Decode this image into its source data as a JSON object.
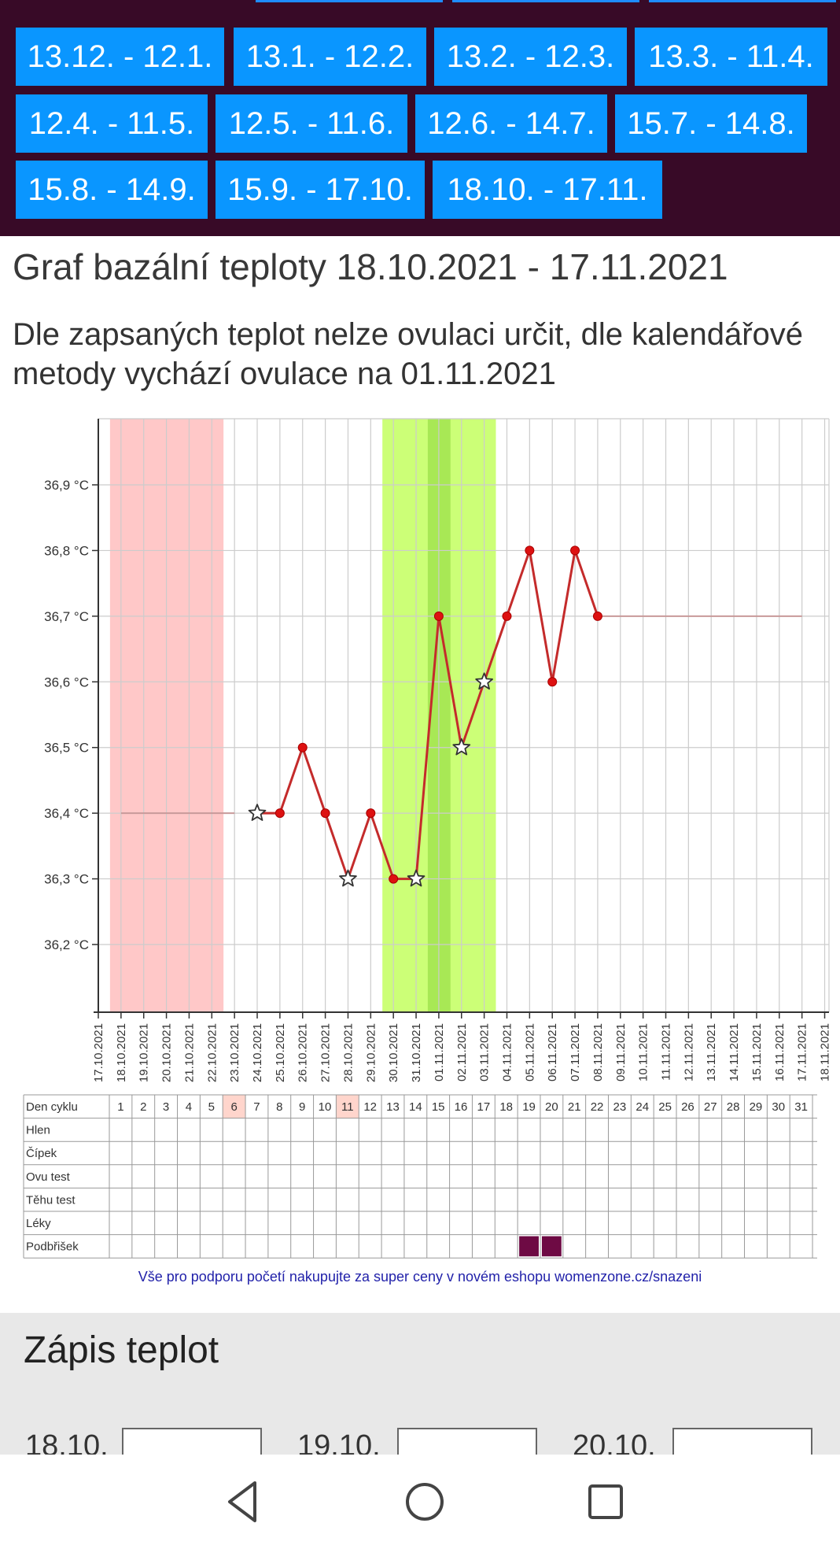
{
  "cycles": [
    "13.12. - 12.1.",
    "13.1. - 12.2.",
    "13.2. - 12.3.",
    "13.3. - 11.4.",
    "12.4. - 11.5.",
    "12.5. - 11.6.",
    "12.6. - 14.7.",
    "15.7. - 14.8.",
    "15.8. - 14.9.",
    "15.9. - 17.10.",
    "18.10. - 17.11."
  ],
  "title": "Graf bazální teploty 18.10.2021 - 17.11.2021",
  "result_text": "Dle zapsaných teplot nelze ovulaci určit, dle kalendářové metody vychází ovulace na 01.11.2021",
  "chart_data": {
    "type": "line",
    "y_unit": "°C",
    "y_tick_labels": [
      "36,9 °C",
      "36,8 °C",
      "36,7 °C",
      "36,6 °C",
      "36,5 °C",
      "36,4 °C",
      "36,3 °C",
      "36,2 °C"
    ],
    "y_ticks": [
      36.9,
      36.8,
      36.7,
      36.6,
      36.5,
      36.4,
      36.3,
      36.2
    ],
    "ylim": [
      36.1,
      37.0
    ],
    "x_labels": [
      "17.10.2021",
      "18.10.2021",
      "19.10.2021",
      "20.10.2021",
      "21.10.2021",
      "22.10.2021",
      "23.10.2021",
      "24.10.2021",
      "25.10.2021",
      "26.10.2021",
      "27.10.2021",
      "28.10.2021",
      "29.10.2021",
      "30.10.2021",
      "31.10.2021",
      "01.11.2021",
      "02.11.2021",
      "03.11.2021",
      "04.11.2021",
      "05.11.2021",
      "06.11.2021",
      "07.11.2021",
      "08.11.2021",
      "09.11.2021",
      "10.11.2021",
      "11.11.2021",
      "12.11.2021",
      "13.11.2021",
      "14.11.2021",
      "15.11.2021",
      "16.11.2021",
      "17.11.2021",
      "18.11.2021"
    ],
    "measured": [
      {
        "date": "24.10.2021",
        "temp": 36.4,
        "marker": "star"
      },
      {
        "date": "25.10.2021",
        "temp": 36.4,
        "marker": "dot"
      },
      {
        "date": "26.10.2021",
        "temp": 36.5,
        "marker": "dot"
      },
      {
        "date": "27.10.2021",
        "temp": 36.4,
        "marker": "dot"
      },
      {
        "date": "28.10.2021",
        "temp": 36.3,
        "marker": "star"
      },
      {
        "date": "29.10.2021",
        "temp": 36.4,
        "marker": "dot"
      },
      {
        "date": "30.10.2021",
        "temp": 36.3,
        "marker": "dot"
      },
      {
        "date": "31.10.2021",
        "temp": 36.3,
        "marker": "star"
      },
      {
        "date": "01.11.2021",
        "temp": 36.7,
        "marker": "dot"
      },
      {
        "date": "02.11.2021",
        "temp": 36.5,
        "marker": "star"
      },
      {
        "date": "03.11.2021",
        "temp": 36.6,
        "marker": "star"
      },
      {
        "date": "04.11.2021",
        "temp": 36.7,
        "marker": "dot"
      },
      {
        "date": "05.11.2021",
        "temp": 36.8,
        "marker": "dot"
      },
      {
        "date": "06.11.2021",
        "temp": 36.6,
        "marker": "dot"
      },
      {
        "date": "07.11.2021",
        "temp": 36.8,
        "marker": "dot"
      },
      {
        "date": "08.11.2021",
        "temp": 36.7,
        "marker": "dot"
      }
    ],
    "filler_before": {
      "from": "18.10.2021",
      "to": "23.10.2021",
      "temp": 36.4
    },
    "filler_after": {
      "from": "08.11.2021",
      "to": "17.11.2021",
      "temp": 36.7
    },
    "menstruation_band": {
      "from_day": 1,
      "to_day": 5
    },
    "fertile_band": {
      "from_day": 13,
      "to_day": 17
    },
    "ovulation_band": {
      "day": 15
    },
    "grid": true,
    "colors": {
      "line": "#c42b2b",
      "dot": "#dd1111",
      "pink": "#ffc8c8",
      "green": "#ccff77",
      "green_dark": "#a8e855",
      "filler": "#c89a9a",
      "grid": "#cccccc",
      "axis": "#333333"
    }
  },
  "table": {
    "row_labels": [
      "Den cyklu",
      "Hlen",
      "Čípek",
      "Ovu test",
      "Těhu test",
      "Léky",
      "Podbřišek"
    ],
    "days": [
      "1",
      "2",
      "3",
      "4",
      "5",
      "6",
      "7",
      "8",
      "9",
      "10",
      "11",
      "12",
      "13",
      "14",
      "15",
      "16",
      "17",
      "18",
      "19",
      "20",
      "21",
      "22",
      "23",
      "24",
      "25",
      "26",
      "27",
      "28",
      "29",
      "30",
      "31"
    ],
    "highlighted_days": [
      6,
      11
    ],
    "podbrisek_filled_days": [
      19,
      20
    ],
    "colors": {
      "highlight": "#ffd5cc",
      "filled": "#6e0a44",
      "label": "#333333"
    }
  },
  "promo_text": "Vše pro podporu početí nakupujte za super ceny v novém eshopu womenzone.cz/snazeni",
  "form": {
    "title": "Zápis teplot",
    "labels": [
      "18.10.",
      "19.10.",
      "20.10."
    ]
  },
  "navbar": [
    "back-icon",
    "home-icon",
    "recents-icon"
  ]
}
